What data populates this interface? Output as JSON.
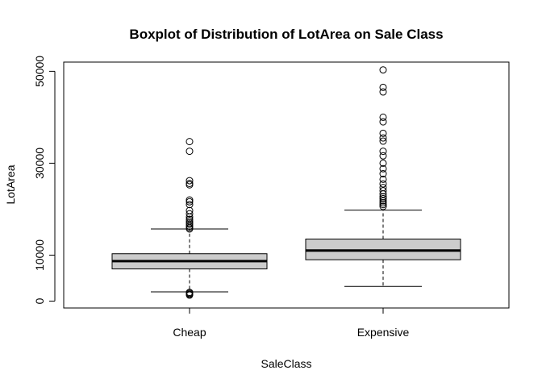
{
  "chart_data": {
    "type": "boxplot",
    "title": "Boxplot of Distribution of LotArea on Sale Class",
    "xlabel": "SaleClass",
    "ylabel": "LotArea",
    "ylim": [
      -1500,
      52000
    ],
    "yticks": [
      0,
      10000,
      30000,
      50000
    ],
    "ytick_labels": [
      "0",
      "10000",
      "30000",
      "50000"
    ],
    "categories": [
      "Cheap",
      "Expensive"
    ],
    "box_color": "#cccccc",
    "boxes": [
      {
        "name": "Cheap",
        "whisker_low": 2000,
        "q1": 7000,
        "median": 8700,
        "q3": 10300,
        "whisker_high": 15700,
        "outliers": [
          1300,
          1500,
          1700,
          1900,
          15700,
          16000,
          16300,
          16700,
          17000,
          17400,
          17800,
          18300,
          19000,
          19700,
          21000,
          21600,
          22000,
          25300,
          25600,
          26200,
          32600,
          34700
        ]
      },
      {
        "name": "Expensive",
        "whisker_low": 3200,
        "q1": 9000,
        "median": 11000,
        "q3": 13500,
        "whisker_high": 19800,
        "outliers": [
          20600,
          21000,
          21400,
          21800,
          22300,
          22700,
          23300,
          24000,
          24700,
          25500,
          26500,
          27700,
          28800,
          30000,
          31600,
          32600,
          34800,
          35500,
          36500,
          39000,
          40000,
          45500,
          46500,
          50300
        ]
      }
    ]
  }
}
